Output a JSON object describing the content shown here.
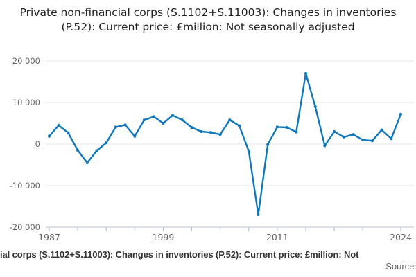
{
  "header": {
    "title": "Private non-financial corps (S.1102+S.11003): Changes in inventories (P.52): Current price: £million: Not seasonally adjusted"
  },
  "footer": {
    "caption_fragment": "ial corps (S.1102+S.11003): Changes in inventories (P.52): Current price: £million: Not",
    "source_label": "Source:"
  },
  "chart_data": {
    "type": "line",
    "title": "Private non-financial corps (S.1102+S.11003): Changes in inventories (P.52): Current price: £million: Not seasonally adjusted",
    "unit": "£million",
    "legend": "none",
    "grid": true,
    "x": [
      1987,
      1988,
      1989,
      1990,
      1991,
      1992,
      1993,
      1994,
      1995,
      1996,
      1997,
      1998,
      1999,
      2000,
      2001,
      2002,
      2003,
      2004,
      2005,
      2006,
      2007,
      2008,
      2009,
      2010,
      2011,
      2012,
      2013,
      2014,
      2015,
      2016,
      2017,
      2018,
      2019,
      2020,
      2021,
      2022,
      2023,
      2024
    ],
    "values": [
      1900,
      4500,
      2700,
      -1500,
      -4500,
      -1600,
      300,
      4100,
      4600,
      1900,
      5800,
      6600,
      5000,
      6900,
      5800,
      4000,
      3000,
      2800,
      2300,
      5800,
      4400,
      -1700,
      -17000,
      -100,
      4100,
      4000,
      2900,
      17000,
      9000,
      -400,
      3000,
      1700,
      2300,
      1000,
      800,
      3400,
      1300,
      7200
    ],
    "ylim": [
      -20000,
      20000
    ],
    "yticks": [
      {
        "value": 20000,
        "label": "20 000"
      },
      {
        "value": 10000,
        "label": "10 000"
      },
      {
        "value": 0,
        "label": "0"
      },
      {
        "value": -10000,
        "label": "-10 000"
      },
      {
        "value": -20000,
        "label": "-20 000"
      }
    ],
    "xticks": [
      1987,
      1990,
      1993,
      1996,
      1999,
      2002,
      2005,
      2008,
      2011,
      2014,
      2017,
      2020,
      2024
    ],
    "xtick_labels": {
      "1987": "1987",
      "1999": "1999",
      "2011": "2011",
      "2024": "2024"
    },
    "colors": {
      "line": "#0f77bc",
      "grid": "#e6e6e6",
      "axis": "#c6d1de",
      "tick": "#b9c6d6",
      "tick_label": "#666666"
    }
  }
}
